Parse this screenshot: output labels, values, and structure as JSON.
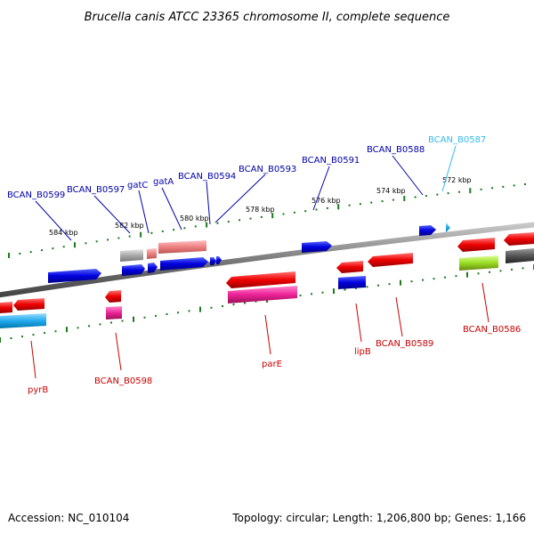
{
  "title": "Brucella canis ATCC 23365 chromosome II, complete sequence",
  "footer": {
    "accession": "Accession: NC_010104",
    "topology": "Topology: circular; Length: 1,206,800 bp; Genes: 1,166"
  },
  "ticks": [
    "584 kbp",
    "582 kbp",
    "580 kbp",
    "578 kbp",
    "576 kbp",
    "574 kbp",
    "572 kbp"
  ],
  "labels_top": [
    "BCAN_B0599",
    "BCAN_B0597",
    "gatC",
    "gatA",
    "BCAN_B0594",
    "BCAN_B0593",
    "BCAN_B0591",
    "BCAN_B0588",
    "BCAN_B0587"
  ],
  "labels_bottom": [
    "pyrB",
    "BCAN_B0598",
    "parE",
    "lipB",
    "BCAN_B0589",
    "BCAN_B0586"
  ],
  "colors": {
    "backbone": "#7a7a7a",
    "tick_dots": "#1a7a1a",
    "label_forward": "#0000aa",
    "label_reverse": "#cc0000",
    "label_highlight": "#33bbee",
    "gene_blue": "#0000dd",
    "gene_red": "#ee0000",
    "gene_pink": "#ee88aa",
    "gene_magenta": "#ee2299",
    "gene_cyan": "#22aaee",
    "gene_lime": "#99dd22",
    "gene_grey": "#aaaaaa",
    "gene_darkgrey": "#555555"
  }
}
